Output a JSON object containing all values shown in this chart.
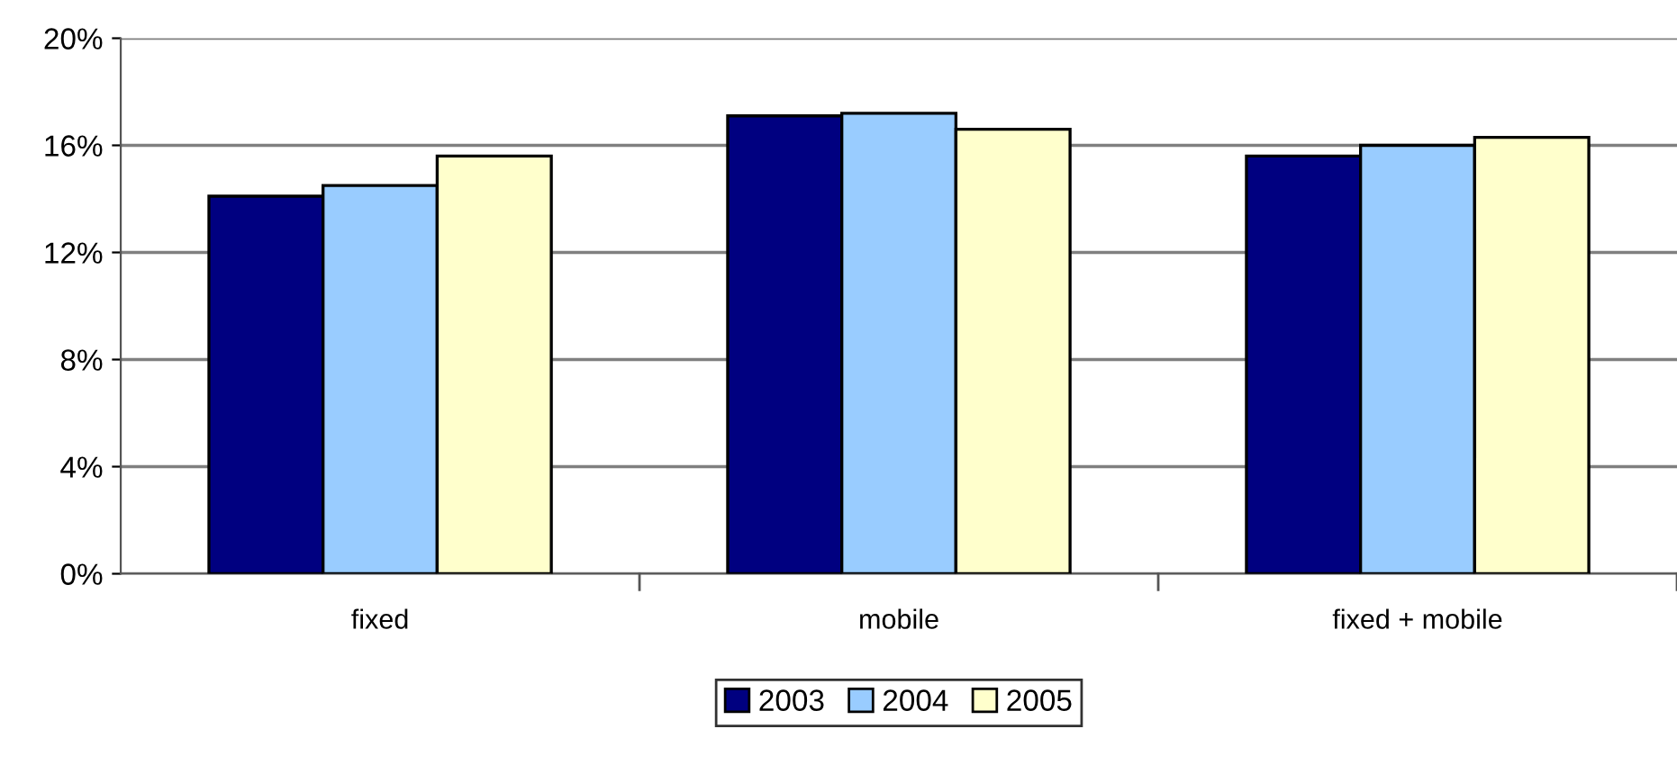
{
  "chart_data": {
    "type": "bar",
    "categories": [
      "fixed",
      "mobile",
      "fixed + mobile"
    ],
    "series": [
      {
        "name": "2003",
        "color": "#000080",
        "values": [
          14.1,
          17.1,
          15.6
        ]
      },
      {
        "name": "2004",
        "color": "#99ccff",
        "values": [
          14.5,
          17.2,
          16.0
        ]
      },
      {
        "name": "2005",
        "color": "#ffffcc",
        "values": [
          15.6,
          16.6,
          16.3
        ]
      }
    ],
    "ylim": [
      0,
      20
    ],
    "yticks": [
      {
        "value": 0,
        "label": "0%"
      },
      {
        "value": 4,
        "label": "4%"
      },
      {
        "value": 8,
        "label": "8%"
      },
      {
        "value": 12,
        "label": "12%"
      },
      {
        "value": 16,
        "label": "16%"
      },
      {
        "value": 20,
        "label": "20%"
      }
    ],
    "grid": "y",
    "legend": "bottom"
  }
}
